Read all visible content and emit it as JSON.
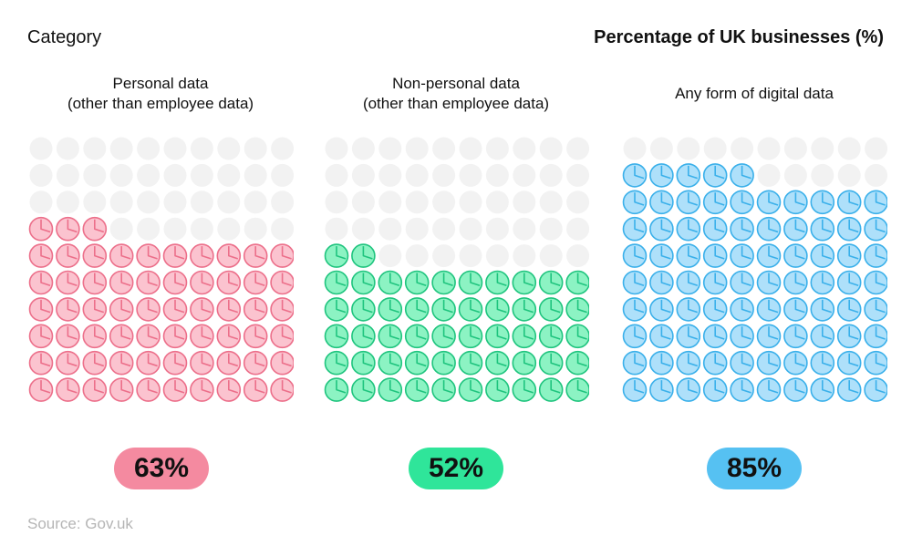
{
  "header": {
    "left_label": "Category",
    "right_label": "Percentage of UK businesses (%)"
  },
  "chart_data": {
    "type": "waffle",
    "total_units": 100,
    "categories": [
      "Personal data\n(other than employee data)",
      "Non-personal data\n(other than employee data)",
      "Any form of digital data"
    ],
    "values": [
      63,
      52,
      85
    ],
    "value_labels": [
      "63%",
      "52%",
      "85%"
    ],
    "colors": {
      "series": [
        "#f48aa0",
        "#2fe59a",
        "#56c1f2"
      ],
      "series_fill": [
        "#fbc3cf",
        "#8cf3c3",
        "#aee0fa"
      ],
      "series_stroke": [
        "#ec6f8a",
        "#1fc47e",
        "#3ab0ea"
      ],
      "empty": "#f2f2f2"
    }
  },
  "source": "Source: Gov.uk"
}
